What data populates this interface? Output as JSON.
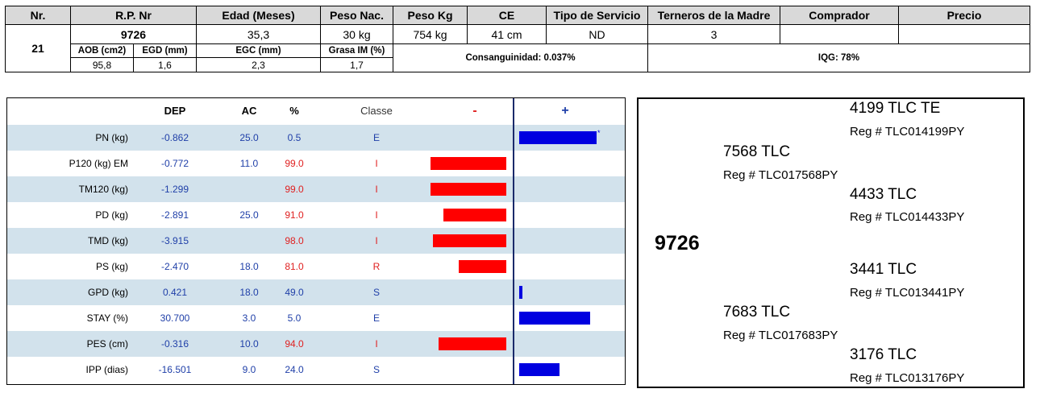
{
  "summary": {
    "headers": {
      "nr": "Nr.",
      "rp": "R.P. Nr",
      "edad": "Edad (Meses)",
      "peso_nac": "Peso Nac.",
      "peso_kg": "Peso Kg",
      "ce": "CE",
      "tipo": "Tipo de Servicio",
      "terneros": "Terneros de la Madre",
      "comprador": "Comprador",
      "precio": "Precio"
    },
    "nr": "21",
    "rp": "9726",
    "edad": "35,3",
    "peso_nac": "30 kg",
    "peso_kg": "754 kg",
    "ce": "41 cm",
    "tipo": "ND",
    "terneros": "3",
    "comprador": "",
    "precio": "",
    "sub_headers": {
      "aob": "AOB (cm2)",
      "egd": "EGD (mm)",
      "egc": "EGC (mm)",
      "grasa": "Grasa IM (%)"
    },
    "aob": "95,8",
    "egd": "1,6",
    "egc": "2,3",
    "grasa": "1,7",
    "consanguinidad": "Consanguinidad: 0.037%",
    "iqg": "IQG: 78%"
  },
  "epd": {
    "headers": {
      "dep": "DEP",
      "ac": "AC",
      "pct": "%",
      "classe": "Classe",
      "minus": "-",
      "plus": "+"
    },
    "rows": [
      {
        "label": "PN (kg)",
        "dep": "-0.862",
        "ac": "25.0",
        "pct": "0.5",
        "classe": "E",
        "pct_color": "blue",
        "bar": 0.8,
        "star": "*"
      },
      {
        "label": "P120 (kg) EM",
        "dep": "-0.772",
        "ac": "11.0",
        "pct": "99.0",
        "classe": "I",
        "pct_color": "red",
        "bar": -0.78
      },
      {
        "label": "TM120 (kg)",
        "dep": "-1.299",
        "ac": "",
        "pct": "99.0",
        "classe": "I",
        "pct_color": "red",
        "bar": -0.78
      },
      {
        "label": "PD (kg)",
        "dep": "-2.891",
        "ac": "25.0",
        "pct": "91.0",
        "classe": "I",
        "pct_color": "red",
        "bar": -0.65
      },
      {
        "label": "TMD (kg)",
        "dep": "-3.915",
        "ac": "",
        "pct": "98.0",
        "classe": "I",
        "pct_color": "red",
        "bar": -0.76
      },
      {
        "label": "PS (kg)",
        "dep": "-2.470",
        "ac": "18.0",
        "pct": "81.0",
        "classe": "R",
        "pct_color": "red",
        "bar": -0.49
      },
      {
        "label": "GPD (kg)",
        "dep": "0.421",
        "ac": "18.0",
        "pct": "49.0",
        "classe": "S",
        "pct_color": "blue",
        "bar": 0.03
      },
      {
        "label": "STAY (%)",
        "dep": "30.700",
        "ac": "3.0",
        "pct": "5.0",
        "classe": "E",
        "pct_color": "blue",
        "bar": 0.73
      },
      {
        "label": "PES (cm)",
        "dep": "-0.316",
        "ac": "10.0",
        "pct": "94.0",
        "classe": "I",
        "pct_color": "red",
        "bar": -0.7
      },
      {
        "label": "IPP (dias)",
        "dep": "-16.501",
        "ac": "9.0",
        "pct": "24.0",
        "classe": "S",
        "pct_color": "blue",
        "bar": 0.42
      }
    ]
  },
  "pedigree": {
    "animal": "9726",
    "sire": {
      "name": "7568 TLC",
      "reg": "Reg # TLC017568PY"
    },
    "sire_sire": {
      "name": "4199 TLC TE",
      "reg": "Reg # TLC014199PY"
    },
    "sire_dam": {
      "name": "4433 TLC",
      "reg": "Reg # TLC014433PY"
    },
    "dam": {
      "name": "7683 TLC",
      "reg": "Reg # TLC017683PY"
    },
    "dam_sire": {
      "name": "3441 TLC",
      "reg": "Reg # TLC013441PY"
    },
    "dam_dam": {
      "name": "3176 TLC",
      "reg": "Reg # TLC013176PY"
    }
  }
}
